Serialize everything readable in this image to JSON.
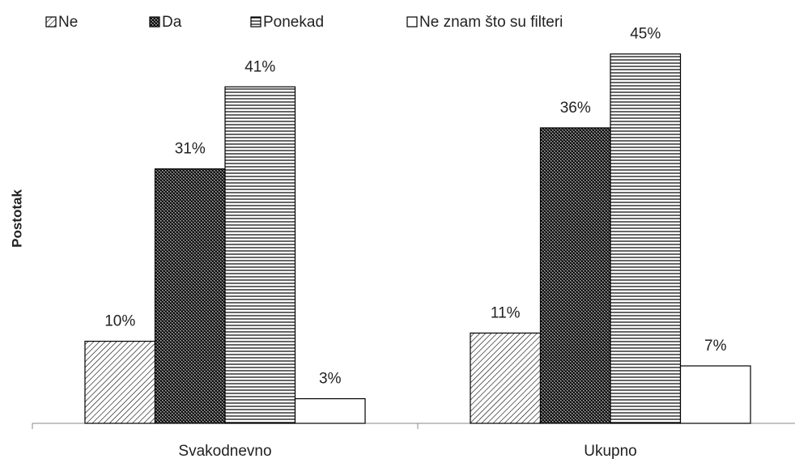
{
  "chart_data": {
    "type": "bar",
    "y_label": "Postotak",
    "categories": [
      "Svakodnevno",
      "Ukupno"
    ],
    "series": [
      {
        "name": "Ne",
        "color": "#000000",
        "pattern": "diagonal",
        "values": [
          10,
          11
        ],
        "value_labels": [
          "10%",
          "11%"
        ]
      },
      {
        "name": "Da",
        "color": "#000000",
        "pattern": "checker",
        "values": [
          31,
          36
        ],
        "value_labels": [
          "31%",
          "36%"
        ]
      },
      {
        "name": "Ponekad",
        "color": "#000000",
        "pattern": "horizontal",
        "values": [
          41,
          45
        ],
        "value_labels": [
          "41%",
          "45%"
        ]
      },
      {
        "name": "Ne znam što su filteri",
        "color": "#000000",
        "pattern": "none",
        "values": [
          3,
          7
        ],
        "value_labels": [
          "3%",
          "7%"
        ]
      }
    ],
    "ylim": [
      0,
      50
    ],
    "legend": "top"
  }
}
